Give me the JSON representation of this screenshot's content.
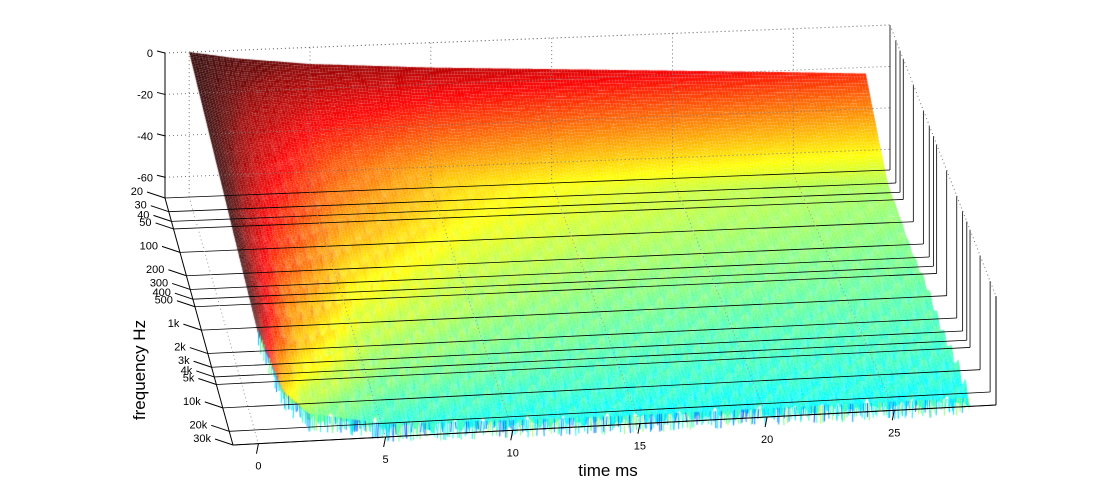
{
  "chart_data": {
    "type": "surface",
    "title": "",
    "xlabel": "time   ms",
    "ylabel": "frequency    Hz",
    "zlabel": "",
    "x_ticks": [
      0,
      5,
      10,
      15,
      20,
      25
    ],
    "x_tick_labels": [
      "0",
      "5",
      "10",
      "15",
      "20",
      "25"
    ],
    "xlim": [
      -1,
      29
    ],
    "y_ticks": [
      20,
      30,
      40,
      50,
      100,
      200,
      300,
      400,
      500,
      1000,
      2000,
      3000,
      4000,
      5000,
      10000,
      20000,
      30000
    ],
    "y_tick_labels": [
      "20",
      "30",
      "40",
      "50",
      "100",
      "200",
      "300",
      "400",
      "500",
      "1k",
      "2k",
      "3k",
      "4k",
      "5k",
      "10k",
      "20k",
      "30k"
    ],
    "y_scale": "log",
    "ylim": [
      20,
      30000
    ],
    "z_ticks": [
      0,
      -20,
      -40,
      -60
    ],
    "z_tick_labels": [
      "0",
      "-20",
      "-40",
      "-60"
    ],
    "zlim": [
      -70,
      0
    ],
    "colormap": "jet",
    "grid": true,
    "description_of_surface": "Energy decay surface: level starts near 0 dB at t=0 across all frequencies and decays, with high frequencies decaying faster to the -60..-70 dB noise floor",
    "level_samples": {
      "times_ms": [
        0,
        1,
        2,
        5,
        10,
        15,
        20,
        25,
        28
      ],
      "frequencies_hz": [
        20,
        100,
        1000,
        10000,
        30000
      ],
      "level_db": [
        [
          0,
          -2,
          -4,
          -8,
          -12,
          -15,
          -18,
          -21,
          -23
        ],
        [
          0,
          -6,
          -12,
          -25,
          -38,
          -44,
          -48,
          -51,
          -52
        ],
        [
          0,
          -12,
          -22,
          -40,
          -50,
          -54,
          -56,
          -57,
          -58
        ],
        [
          0,
          -22,
          -38,
          -55,
          -60,
          -62,
          -63,
          -63,
          -63
        ],
        [
          0,
          -40,
          -55,
          -64,
          -66,
          -67,
          -67,
          -67,
          -67
        ]
      ]
    }
  }
}
